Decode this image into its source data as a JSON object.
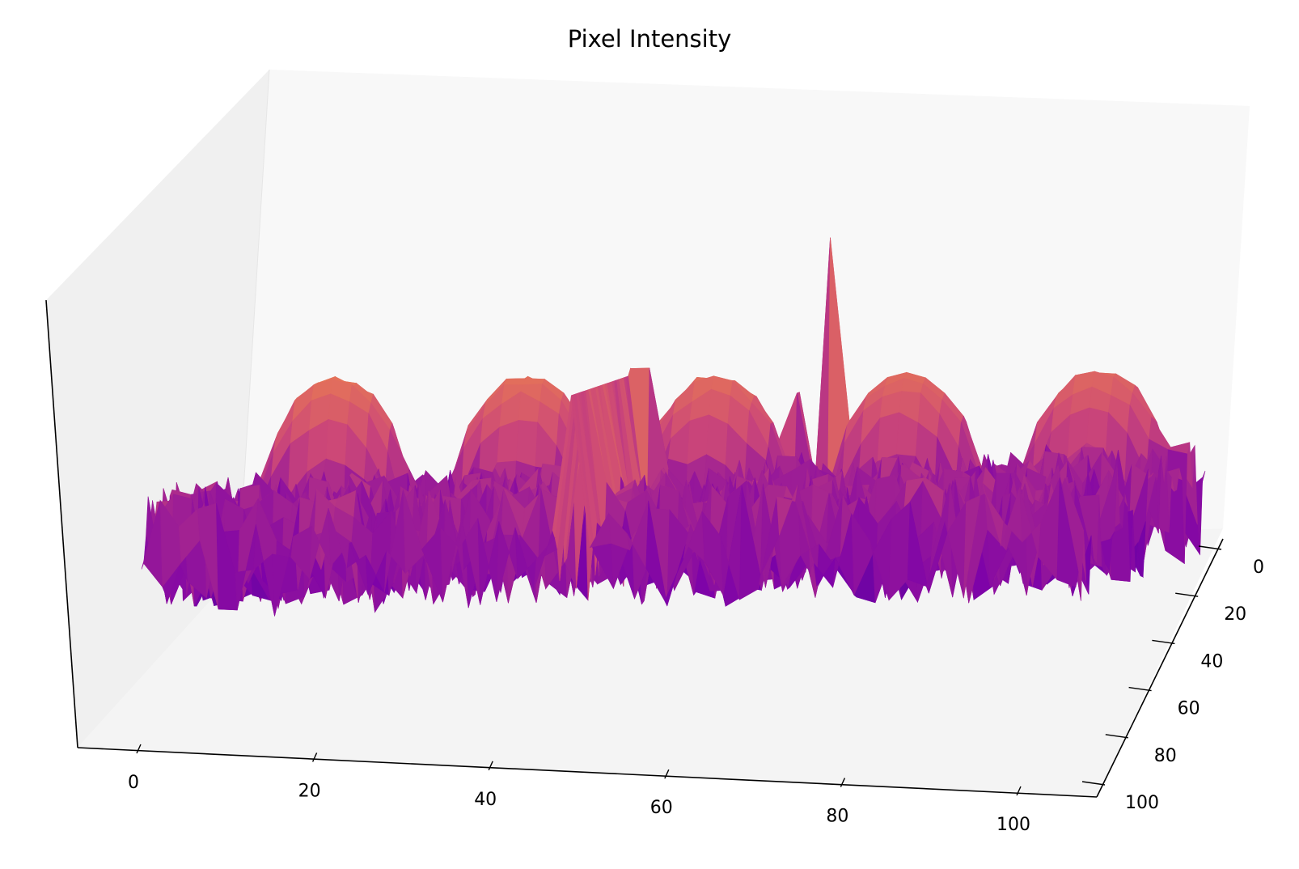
{
  "chart_data": {
    "type": "surface3d",
    "title": "Pixel Intensity",
    "xlabel": "",
    "ylabel": "",
    "zlabel": "",
    "colormap": "plasma",
    "grid": false,
    "x_ticks": [
      "0",
      "20",
      "40",
      "60",
      "80",
      "100"
    ],
    "y_ticks": [
      "0",
      "20",
      "40",
      "60",
      "80",
      "100"
    ],
    "xlim": [
      0,
      100
    ],
    "ylim": [
      0,
      100
    ],
    "features": {
      "background_level": 0.35,
      "noise_amplitude": 0.15,
      "domes": [
        {
          "x": 10,
          "y": 10,
          "radius": 9,
          "height": 0.85
        },
        {
          "x": 30,
          "y": 10,
          "radius": 9,
          "height": 0.83
        },
        {
          "x": 50,
          "y": 10,
          "radius": 9,
          "height": 0.82
        },
        {
          "x": 70,
          "y": 10,
          "radius": 9,
          "height": 0.8
        },
        {
          "x": 90,
          "y": 10,
          "radius": 9,
          "height": 0.8
        }
      ],
      "spikes": [
        {
          "x": 47,
          "y": 50,
          "height": 1.0
        },
        {
          "x": 62,
          "y": 10,
          "height": 0.98
        },
        {
          "x": 58,
          "y": 5,
          "height": 0.85
        }
      ],
      "ridge": {
        "x": 46,
        "y_from": 35,
        "y_to": 100,
        "height": 0.7
      }
    }
  }
}
